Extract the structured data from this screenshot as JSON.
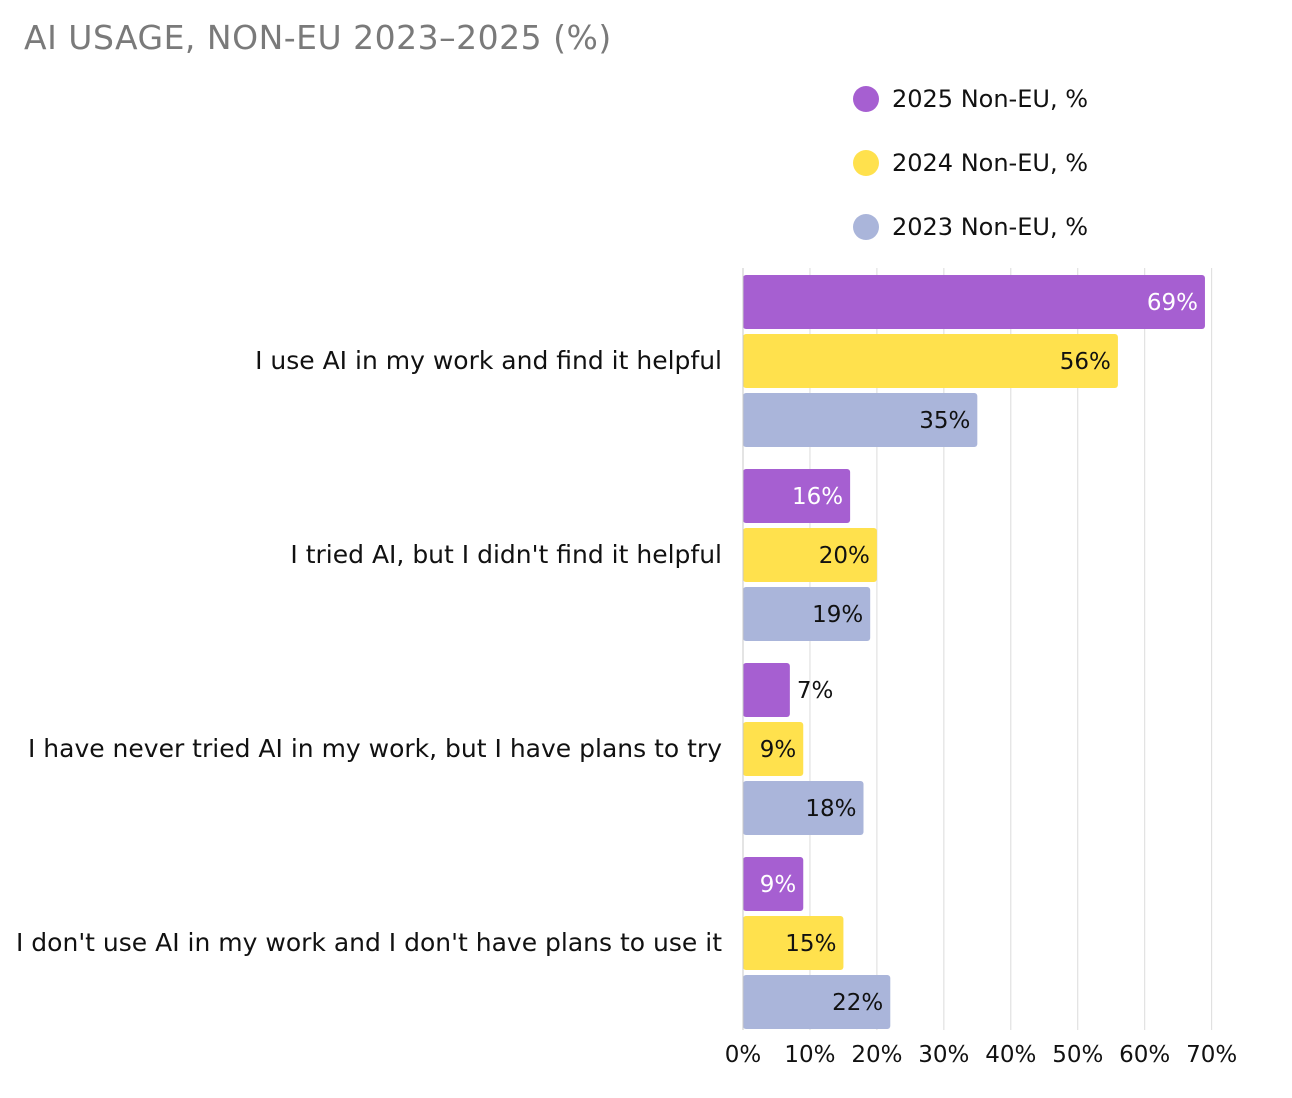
{
  "chart_data": {
    "type": "bar",
    "orientation": "horizontal",
    "title": "AI USAGE, NON-EU 2023–2025 (%)",
    "xlabel": "",
    "ylabel": "",
    "xlim": [
      0,
      70
    ],
    "x_ticks": [
      0,
      10,
      20,
      30,
      40,
      50,
      60,
      70
    ],
    "x_tick_labels": [
      "0%",
      "10%",
      "20%",
      "30%",
      "40%",
      "50%",
      "60%",
      "70%"
    ],
    "grid": "vertical",
    "legend_position": "top-right",
    "categories": [
      "I use AI in my work and find it helpful",
      "I tried AI, but I didn't find it helpful",
      "I have never tried AI in my work, but I have plans to try",
      "I don't use AI in my work and I don't have plans to use it"
    ],
    "series": [
      {
        "name": "2025 Non-EU, %",
        "color": "#a65fd1",
        "values": [
          69,
          16,
          7,
          9
        ],
        "labels": [
          "69%",
          "16%",
          "7%",
          "9%"
        ]
      },
      {
        "name": "2024 Non-EU, %",
        "color": "#ffe14d",
        "values": [
          56,
          20,
          9,
          15
        ],
        "labels": [
          "56%",
          "20%",
          "9%",
          "15%"
        ]
      },
      {
        "name": "2023 Non-EU, %",
        "color": "#aab5da",
        "values": [
          35,
          19,
          18,
          22
        ],
        "labels": [
          "35%",
          "19%",
          "18%",
          "22%"
        ]
      }
    ]
  }
}
